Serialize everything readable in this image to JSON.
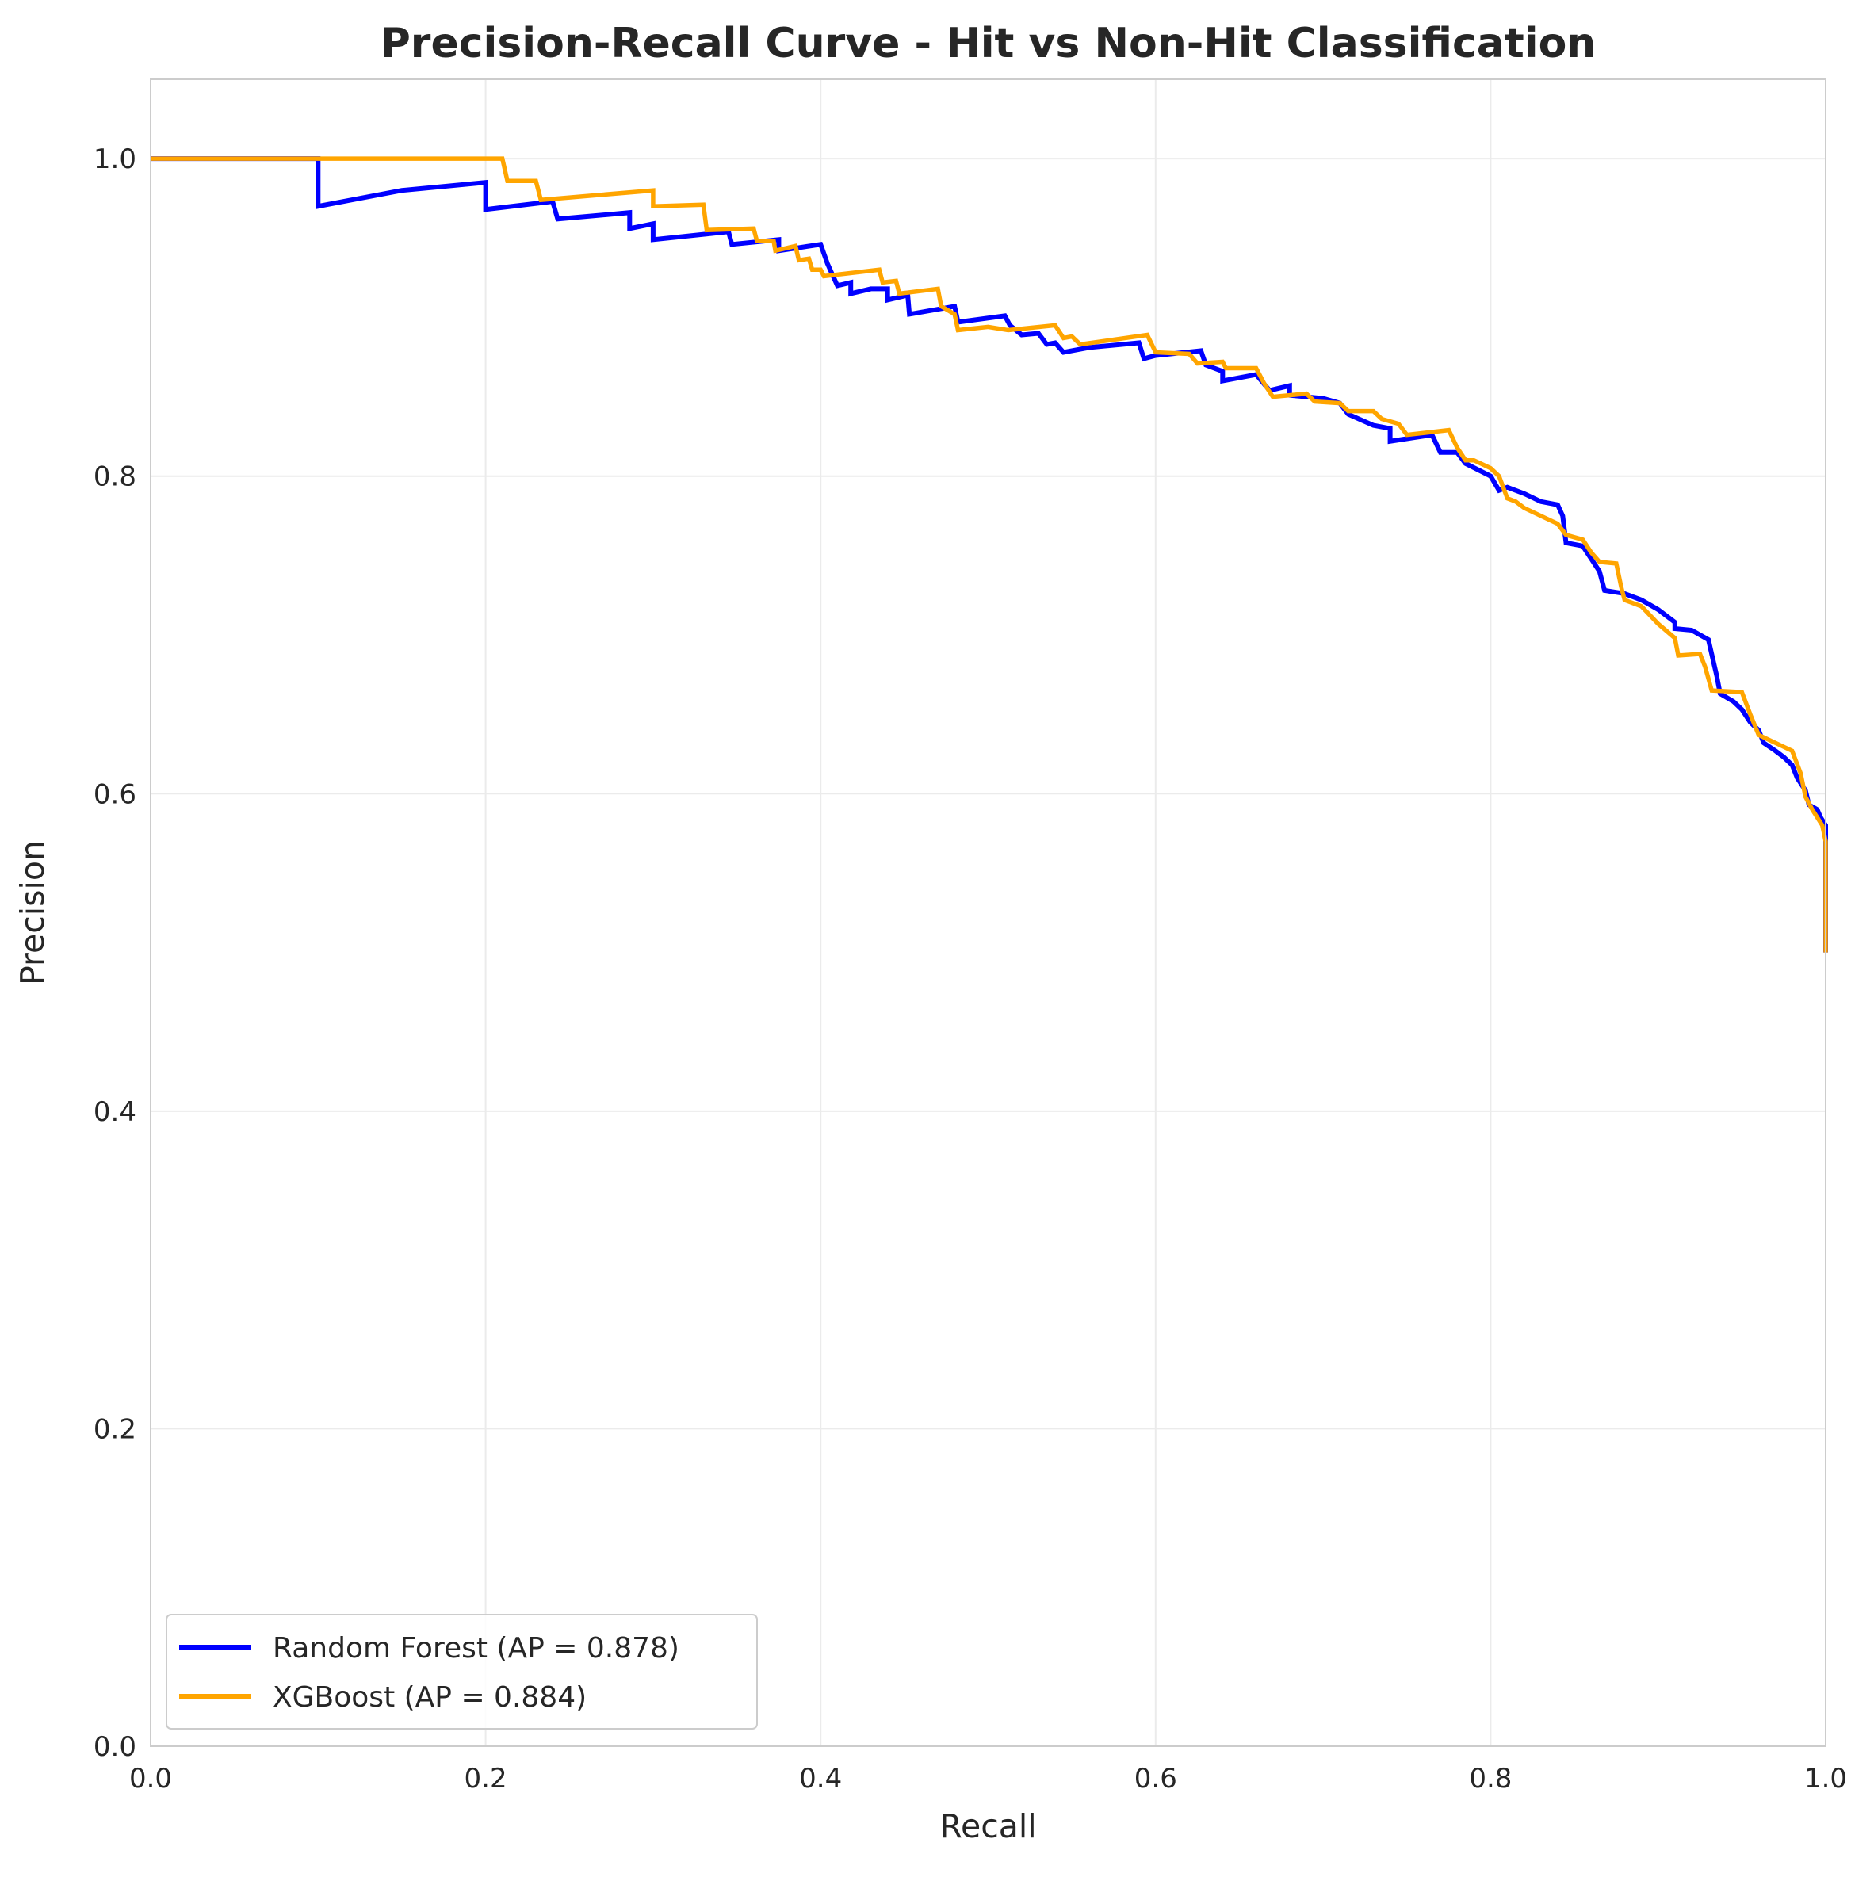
{
  "chart_data": {
    "type": "line",
    "title": "Precision-Recall Curve - Hit vs Non-Hit Classification",
    "xlabel": "Recall",
    "ylabel": "Precision",
    "xlim": [
      0,
      1
    ],
    "ylim": [
      0,
      1.05
    ],
    "grid": true,
    "legend_position": "lower-left",
    "x_ticks": [
      "0.0",
      "0.2",
      "0.4",
      "0.6",
      "0.8",
      "1.0"
    ],
    "y_ticks": [
      "0.0",
      "0.2",
      "0.4",
      "0.6",
      "0.8",
      "1.0"
    ],
    "series": [
      {
        "name": "Random Forest (AP = 0.878)",
        "color": "#0000ff",
        "points": [
          [
            0.0,
            1.0
          ],
          [
            0.1,
            1.0
          ],
          [
            0.1,
            0.97
          ],
          [
            0.15,
            0.98
          ],
          [
            0.2,
            0.985
          ],
          [
            0.2,
            0.968
          ],
          [
            0.24,
            0.973
          ],
          [
            0.243,
            0.962
          ],
          [
            0.286,
            0.966
          ],
          [
            0.286,
            0.956
          ],
          [
            0.3,
            0.959
          ],
          [
            0.3,
            0.949
          ],
          [
            0.345,
            0.954
          ],
          [
            0.347,
            0.946
          ],
          [
            0.375,
            0.949
          ],
          [
            0.375,
            0.942
          ],
          [
            0.4,
            0.946
          ],
          [
            0.404,
            0.934
          ],
          [
            0.41,
            0.92
          ],
          [
            0.418,
            0.922
          ],
          [
            0.418,
            0.915
          ],
          [
            0.43,
            0.918
          ],
          [
            0.44,
            0.918
          ],
          [
            0.44,
            0.911
          ],
          [
            0.452,
            0.914
          ],
          [
            0.453,
            0.902
          ],
          [
            0.48,
            0.907
          ],
          [
            0.482,
            0.897
          ],
          [
            0.51,
            0.901
          ],
          [
            0.513,
            0.895
          ],
          [
            0.52,
            0.889
          ],
          [
            0.53,
            0.89
          ],
          [
            0.535,
            0.883
          ],
          [
            0.54,
            0.884
          ],
          [
            0.545,
            0.878
          ],
          [
            0.56,
            0.881
          ],
          [
            0.59,
            0.884
          ],
          [
            0.593,
            0.874
          ],
          [
            0.6,
            0.876
          ],
          [
            0.627,
            0.879
          ],
          [
            0.63,
            0.87
          ],
          [
            0.64,
            0.866
          ],
          [
            0.64,
            0.86
          ],
          [
            0.66,
            0.864
          ],
          [
            0.668,
            0.854
          ],
          [
            0.68,
            0.857
          ],
          [
            0.68,
            0.851
          ],
          [
            0.7,
            0.849
          ],
          [
            0.71,
            0.846
          ],
          [
            0.715,
            0.839
          ],
          [
            0.73,
            0.832
          ],
          [
            0.74,
            0.83
          ],
          [
            0.74,
            0.822
          ],
          [
            0.765,
            0.826
          ],
          [
            0.77,
            0.815
          ],
          [
            0.78,
            0.815
          ],
          [
            0.785,
            0.808
          ],
          [
            0.8,
            0.8
          ],
          [
            0.805,
            0.791
          ],
          [
            0.81,
            0.793
          ],
          [
            0.82,
            0.789
          ],
          [
            0.83,
            0.784
          ],
          [
            0.84,
            0.782
          ],
          [
            0.843,
            0.775
          ],
          [
            0.845,
            0.758
          ],
          [
            0.855,
            0.756
          ],
          [
            0.86,
            0.748
          ],
          [
            0.865,
            0.74
          ],
          [
            0.868,
            0.728
          ],
          [
            0.88,
            0.726
          ],
          [
            0.89,
            0.722
          ],
          [
            0.9,
            0.716
          ],
          [
            0.91,
            0.708
          ],
          [
            0.91,
            0.704
          ],
          [
            0.92,
            0.703
          ],
          [
            0.93,
            0.697
          ],
          [
            0.935,
            0.674
          ],
          [
            0.937,
            0.663
          ],
          [
            0.945,
            0.658
          ],
          [
            0.95,
            0.653
          ],
          [
            0.955,
            0.645
          ],
          [
            0.96,
            0.64
          ],
          [
            0.963,
            0.632
          ],
          [
            0.97,
            0.627
          ],
          [
            0.975,
            0.623
          ],
          [
            0.98,
            0.618
          ],
          [
            0.983,
            0.61
          ],
          [
            0.988,
            0.602
          ],
          [
            0.99,
            0.593
          ],
          [
            0.995,
            0.59
          ],
          [
            0.997,
            0.585
          ],
          [
            1.0,
            0.58
          ],
          [
            1.0,
            0.5
          ]
        ]
      },
      {
        "name": "XGBoost (AP = 0.884)",
        "color": "#ffa500",
        "points": [
          [
            0.0,
            1.0
          ],
          [
            0.21,
            1.0
          ],
          [
            0.213,
            0.986
          ],
          [
            0.23,
            0.986
          ],
          [
            0.233,
            0.974
          ],
          [
            0.3,
            0.98
          ],
          [
            0.3,
            0.97
          ],
          [
            0.33,
            0.971
          ],
          [
            0.332,
            0.955
          ],
          [
            0.36,
            0.956
          ],
          [
            0.362,
            0.948
          ],
          [
            0.372,
            0.948
          ],
          [
            0.373,
            0.942
          ],
          [
            0.385,
            0.945
          ],
          [
            0.387,
            0.936
          ],
          [
            0.393,
            0.937
          ],
          [
            0.395,
            0.93
          ],
          [
            0.4,
            0.93
          ],
          [
            0.402,
            0.926
          ],
          [
            0.435,
            0.93
          ],
          [
            0.437,
            0.922
          ],
          [
            0.445,
            0.923
          ],
          [
            0.447,
            0.915
          ],
          [
            0.47,
            0.918
          ],
          [
            0.472,
            0.907
          ],
          [
            0.48,
            0.902
          ],
          [
            0.482,
            0.892
          ],
          [
            0.5,
            0.894
          ],
          [
            0.512,
            0.892
          ],
          [
            0.54,
            0.895
          ],
          [
            0.545,
            0.887
          ],
          [
            0.55,
            0.888
          ],
          [
            0.555,
            0.883
          ],
          [
            0.595,
            0.889
          ],
          [
            0.6,
            0.878
          ],
          [
            0.62,
            0.877
          ],
          [
            0.625,
            0.871
          ],
          [
            0.64,
            0.872
          ],
          [
            0.642,
            0.868
          ],
          [
            0.66,
            0.868
          ],
          [
            0.665,
            0.858
          ],
          [
            0.67,
            0.85
          ],
          [
            0.69,
            0.852
          ],
          [
            0.695,
            0.847
          ],
          [
            0.71,
            0.846
          ],
          [
            0.715,
            0.841
          ],
          [
            0.73,
            0.841
          ],
          [
            0.735,
            0.836
          ],
          [
            0.745,
            0.833
          ],
          [
            0.75,
            0.826
          ],
          [
            0.775,
            0.829
          ],
          [
            0.78,
            0.818
          ],
          [
            0.785,
            0.81
          ],
          [
            0.79,
            0.81
          ],
          [
            0.8,
            0.805
          ],
          [
            0.805,
            0.8
          ],
          [
            0.81,
            0.786
          ],
          [
            0.815,
            0.784
          ],
          [
            0.82,
            0.78
          ],
          [
            0.83,
            0.775
          ],
          [
            0.84,
            0.77
          ],
          [
            0.845,
            0.763
          ],
          [
            0.855,
            0.76
          ],
          [
            0.86,
            0.752
          ],
          [
            0.865,
            0.746
          ],
          [
            0.875,
            0.745
          ],
          [
            0.878,
            0.73
          ],
          [
            0.88,
            0.722
          ],
          [
            0.89,
            0.718
          ],
          [
            0.9,
            0.707
          ],
          [
            0.91,
            0.698
          ],
          [
            0.912,
            0.687
          ],
          [
            0.925,
            0.688
          ],
          [
            0.928,
            0.68
          ],
          [
            0.932,
            0.665
          ],
          [
            0.95,
            0.664
          ],
          [
            0.955,
            0.65
          ],
          [
            0.96,
            0.637
          ],
          [
            0.97,
            0.632
          ],
          [
            0.98,
            0.627
          ],
          [
            0.985,
            0.613
          ],
          [
            0.988,
            0.598
          ],
          [
            0.992,
            0.59
          ],
          [
            0.998,
            0.58
          ],
          [
            1.0,
            0.57
          ],
          [
            1.0,
            0.5
          ]
        ]
      }
    ]
  }
}
